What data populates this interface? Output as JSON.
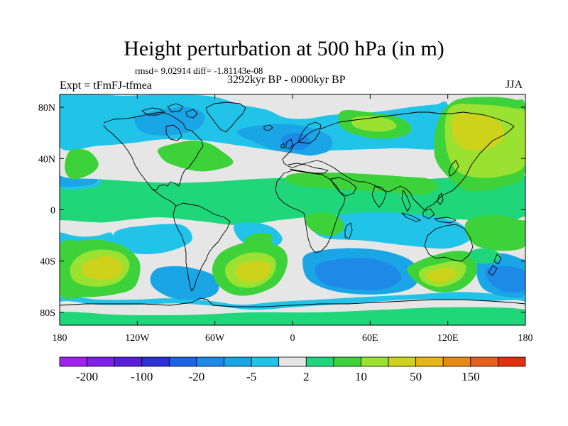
{
  "header": {
    "title": "Height perturbation at 500 hPa (in m)",
    "stats": "rmsd= 9.02914 diff= -1.81143e-08",
    "experiment": "Expt = tFmFJ-tfmea",
    "period": "3292kyr BP - 0000kyr BP",
    "season": "JJA"
  },
  "map": {
    "projection": "cylindrical-equidistant",
    "lon_range": [
      -180,
      180
    ],
    "lat_range": [
      -90,
      90
    ],
    "x_ticks": [
      {
        "lon": -180,
        "label": "180"
      },
      {
        "lon": -120,
        "label": "120W"
      },
      {
        "lon": -60,
        "label": "60W"
      },
      {
        "lon": 0,
        "label": "0"
      },
      {
        "lon": 60,
        "label": "60E"
      },
      {
        "lon": 120,
        "label": "120E"
      },
      {
        "lon": 180,
        "label": "180"
      }
    ],
    "y_ticks": [
      {
        "lat": 80,
        "label": "80N"
      },
      {
        "lat": 40,
        "label": "40N"
      },
      {
        "lat": 0,
        "label": "0"
      },
      {
        "lat": -40,
        "label": "40S"
      },
      {
        "lat": -80,
        "label": "80S"
      }
    ],
    "background_level": "2",
    "coastline_color": "#000000"
  },
  "colorbar": {
    "colors": [
      "#a020f0",
      "#7d21e6",
      "#5a1fd9",
      "#2b33d8",
      "#1e63e3",
      "#1e8ae8",
      "#1aa6e6",
      "#21c4e8",
      "#e6e6e6",
      "#20d67a",
      "#3ed23a",
      "#9ae132",
      "#cfd21a",
      "#e7b514",
      "#e88a12",
      "#e6601a",
      "#e03010"
    ],
    "labels": [
      {
        "boundary": 1,
        "text": "-200"
      },
      {
        "boundary": 3,
        "text": "-100"
      },
      {
        "boundary": 5,
        "text": "-20"
      },
      {
        "boundary": 7,
        "text": "-5"
      },
      {
        "boundary": 9,
        "text": "2"
      },
      {
        "boundary": 11,
        "text": "10"
      },
      {
        "boundary": 13,
        "text": "50"
      },
      {
        "boundary": 15,
        "text": "150"
      }
    ]
  },
  "chart_data": {
    "type": "heatmap",
    "title": "Height perturbation at 500 hPa (in m)",
    "xlabel": "",
    "ylabel": "",
    "xlim": [
      -180,
      180
    ],
    "ylim": [
      -90,
      90
    ],
    "levels": [
      -200,
      -100,
      -20,
      -5,
      2,
      10,
      50,
      150
    ],
    "regions": [
      {
        "level": 9,
        "lon": [
          -180,
          -150,
          -120,
          -90,
          -60,
          -30,
          0,
          30,
          60,
          90,
          120,
          150,
          180,
          180,
          -180
        ],
        "lat": [
          26,
          24,
          22,
          21,
          22,
          24,
          25,
          24,
          22,
          23,
          25,
          26,
          26,
          -8,
          -8
        ]
      },
      {
        "level": 7,
        "lon": [
          -180,
          -170,
          -150,
          -150,
          -170,
          -180
        ],
        "lat": [
          27,
          30,
          31,
          19,
          16,
          18
        ]
      },
      {
        "level": 6,
        "lon": [
          -180,
          -172,
          -155,
          -152,
          -170,
          -180
        ],
        "lat": [
          26,
          29,
          29,
          21,
          18,
          19
        ]
      },
      {
        "level": 7,
        "lon": [
          -180,
          -150,
          -130,
          -100,
          -82,
          -60,
          -40,
          -20,
          -6,
          10,
          30,
          50,
          70,
          90,
          110,
          120,
          122,
          80,
          50,
          20,
          -10,
          -40,
          -70,
          -100,
          -125,
          -150,
          -180
        ],
        "lat": [
          90,
          90,
          89,
          90,
          90,
          88,
          82,
          78,
          72,
          71,
          74,
          75,
          77,
          80,
          82,
          82,
          50,
          48,
          47,
          46,
          46,
          50,
          54,
          55,
          52,
          50,
          49
        ]
      },
      {
        "level": 6,
        "lon": [
          -122,
          -110,
          -95,
          -80,
          -68,
          -72,
          -88,
          -105,
          -118
        ],
        "lat": [
          72,
          76,
          79,
          80,
          74,
          64,
          59,
          58,
          62
        ]
      },
      {
        "level": 6,
        "lon": [
          -40,
          -24,
          -10,
          5,
          20,
          30,
          28,
          10,
          -10,
          -30,
          -42
        ],
        "lat": [
          63,
          66,
          67,
          66,
          62,
          56,
          46,
          42,
          45,
          53,
          59
        ]
      },
      {
        "level": 5,
        "lon": [
          -8,
          2,
          10,
          14,
          8,
          -2,
          -8
        ],
        "lat": [
          57,
          60,
          58,
          52,
          47,
          48,
          52
        ]
      },
      {
        "level": 8,
        "lon": [
          -180,
          -160,
          -140,
          -122,
          -108,
          -95,
          -104,
          -124,
          -150,
          -180
        ],
        "lat": [
          46,
          40,
          37,
          33,
          31,
          29,
          24,
          23,
          24,
          27
        ]
      },
      {
        "level": 8,
        "lon": [
          -50,
          -20,
          15,
          50,
          90,
          110,
          98,
          55,
          20,
          -10,
          -40,
          -50
        ],
        "lat": [
          50,
          47,
          42,
          38,
          32,
          30,
          22,
          27,
          30,
          35,
          41,
          44
        ]
      },
      {
        "level": 10,
        "lon": [
          -103,
          -90,
          -78,
          -65,
          -55,
          -46,
          -52,
          -72,
          -95,
          -103
        ],
        "lat": [
          48,
          52,
          54,
          52,
          46,
          38,
          33,
          30,
          36,
          43
        ]
      },
      {
        "level": 10,
        "lon": [
          -172,
          -158,
          -150,
          -156,
          -170,
          -176
        ],
        "lat": [
          46,
          46,
          36,
          28,
          24,
          32
        ]
      },
      {
        "level": 10,
        "lon": [
          0,
          30,
          55,
          85,
          106,
          112,
          100,
          70,
          38,
          10,
          -5
        ],
        "lat": [
          28,
          29,
          28,
          26,
          24,
          17,
          12,
          14,
          16,
          18,
          22
        ]
      },
      {
        "level": 10,
        "lon": [
          38,
          60,
          82,
          92,
          84,
          60,
          38
        ],
        "lat": [
          77,
          76,
          72,
          64,
          57,
          56,
          64
        ]
      },
      {
        "level": 10,
        "lon": [
          125,
          150,
          172,
          180,
          180,
          162,
          135,
          120,
          110,
          112
        ],
        "lat": [
          85,
          88,
          86,
          80,
          30,
          18,
          15,
          26,
          42,
          68
        ]
      },
      {
        "level": 11,
        "lon": [
          48,
          62,
          76,
          80,
          68,
          52,
          46
        ],
        "lat": [
          72,
          73,
          70,
          64,
          61,
          63,
          67
        ]
      },
      {
        "level": 11,
        "lon": [
          122,
          146,
          172,
          180,
          180,
          160,
          138,
          124,
          118
        ],
        "lat": [
          80,
          82,
          79,
          74,
          36,
          26,
          26,
          34,
          56
        ]
      },
      {
        "level": 12,
        "lon": [
          126,
          146,
          160,
          163,
          150,
          132,
          124
        ],
        "lat": [
          74,
          74,
          68,
          56,
          47,
          48,
          58
        ]
      },
      {
        "level": 8,
        "lon": [
          -180,
          -150,
          -120,
          -100,
          -70,
          -40,
          -10,
          20,
          50,
          80,
          110,
          140,
          170,
          180,
          180,
          150,
          110,
          80,
          50,
          20,
          -10,
          -40,
          -70,
          -100,
          -120,
          -150,
          -180
        ],
        "lat": [
          -9,
          -10,
          -7,
          -6,
          -9,
          -12,
          -8,
          -5,
          -4,
          -3,
          -6,
          -8,
          -8,
          -6,
          -22,
          -25,
          -24,
          -26,
          -24,
          -24,
          -16,
          -14,
          -18,
          -24,
          -22,
          -24,
          -24
        ]
      },
      {
        "level": 7,
        "lon": [
          -180,
          -170,
          -160,
          -150,
          -140,
          -140,
          -160,
          -180
        ],
        "lat": [
          -18,
          -20,
          -21,
          -20,
          -18,
          -28,
          -28,
          -26
        ]
      },
      {
        "level": 7,
        "lon": [
          -135,
          -110,
          -85,
          -78,
          -98,
          -122,
          -138
        ],
        "lat": [
          -16,
          -12,
          -12,
          -24,
          -33,
          -34,
          -26
        ]
      },
      {
        "level": 7,
        "lon": [
          -45,
          -30,
          -15,
          -8,
          -22,
          -40
        ],
        "lat": [
          -12,
          -10,
          -14,
          -24,
          -32,
          -24
        ]
      },
      {
        "level": 7,
        "lon": [
          20,
          55,
          100,
          128,
          138,
          120,
          90,
          55,
          25,
          15
        ],
        "lat": [
          -8,
          -2,
          -4,
          -10,
          -22,
          -30,
          -28,
          -24,
          -22,
          -14
        ]
      },
      {
        "level": 7,
        "lon": [
          -180,
          -150,
          -120,
          -95,
          -65,
          -40,
          -15,
          20,
          55,
          95,
          130,
          160,
          180,
          180,
          -180
        ],
        "lat": [
          -68,
          -70,
          -70,
          -69,
          -71,
          -74,
          -72,
          -70,
          -68,
          -66,
          -64,
          -66,
          -68,
          -90,
          -90
        ]
      },
      {
        "level": 8,
        "lon": [
          -180,
          -150,
          -120,
          -90,
          -60,
          -30,
          0,
          30,
          60,
          90,
          120,
          150,
          180,
          180,
          -180
        ],
        "lat": [
          -72,
          -74,
          -74,
          -73,
          -75,
          -78,
          -76,
          -74,
          -72,
          -70,
          -70,
          -71,
          -72,
          -90,
          -90
        ]
      },
      {
        "level": 9,
        "lon": [
          -180,
          -130,
          -80,
          -30,
          20,
          70,
          120,
          180,
          180,
          -180
        ],
        "lat": [
          -80,
          -82,
          -82,
          -80,
          -80,
          -78,
          -76,
          -78,
          -90,
          -90
        ]
      },
      {
        "level": 6,
        "lon": [
          -105,
          -90,
          -75,
          -60,
          -58,
          -72,
          -92,
          -106,
          -110
        ],
        "lat": [
          -46,
          -44,
          -46,
          -52,
          -64,
          -70,
          -69,
          -62,
          -54
        ]
      },
      {
        "level": 6,
        "lon": [
          12,
          40,
          70,
          92,
          98,
          90,
          65,
          35,
          14,
          8
        ],
        "lat": [
          -34,
          -30,
          -32,
          -40,
          -52,
          -62,
          -66,
          -64,
          -56,
          -44
        ]
      },
      {
        "level": 5,
        "lon": [
          20,
          40,
          60,
          78,
          84,
          70,
          45,
          25,
          18
        ],
        "lat": [
          -42,
          -38,
          -38,
          -44,
          -54,
          -62,
          -62,
          -58,
          -50
        ]
      },
      {
        "level": 6,
        "lon": [
          146,
          162,
          176,
          180,
          180,
          166,
          148,
          142
        ],
        "lat": [
          -36,
          -34,
          -38,
          -42,
          -66,
          -68,
          -62,
          -48
        ]
      },
      {
        "level": 5,
        "lon": [
          150,
          165,
          180,
          180,
          165,
          152
        ],
        "lat": [
          -46,
          -44,
          -48,
          -62,
          -64,
          -56
        ]
      },
      {
        "level": 10,
        "lon": [
          -180,
          -165,
          -145,
          -128,
          -118,
          -122,
          -138,
          -160,
          -180
        ],
        "lat": [
          -28,
          -24,
          -24,
          -30,
          -42,
          -60,
          -66,
          -68,
          -66
        ]
      },
      {
        "level": 11,
        "lon": [
          -165,
          -150,
          -132,
          -126,
          -134,
          -152,
          -168,
          -172
        ],
        "lat": [
          -36,
          -31,
          -34,
          -44,
          -56,
          -60,
          -56,
          -46
        ]
      },
      {
        "level": 12,
        "lon": [
          -158,
          -145,
          -134,
          -132,
          -140,
          -154,
          -162,
          -162
        ],
        "lat": [
          -40,
          -36,
          -40,
          -48,
          -54,
          -54,
          -50,
          -44
        ]
      },
      {
        "level": 10,
        "lon": [
          -56,
          -42,
          -26,
          -8,
          -4,
          -12,
          -30,
          -46,
          -58,
          -62
        ],
        "lat": [
          -34,
          -27,
          -24,
          -30,
          -42,
          -58,
          -66,
          -66,
          -58,
          -46
        ]
      },
      {
        "level": 11,
        "lon": [
          -48,
          -36,
          -22,
          -13,
          -16,
          -28,
          -42,
          -50,
          -52
        ],
        "lat": [
          -40,
          -34,
          -34,
          -40,
          -52,
          -60,
          -60,
          -54,
          -46
        ]
      },
      {
        "level": 12,
        "lon": [
          -42,
          -32,
          -20,
          -17,
          -22,
          -34,
          -42,
          -44
        ],
        "lat": [
          -44,
          -40,
          -41,
          -46,
          -54,
          -56,
          -54,
          -49
        ]
      },
      {
        "level": 10,
        "lon": [
          -36,
          -26,
          -16,
          -18,
          -28,
          -36
        ],
        "lat": [
          -22,
          -18,
          -20,
          -28,
          -30,
          -26
        ]
      },
      {
        "level": 10,
        "lon": [
          90,
          108,
          128,
          140,
          142,
          130,
          112,
          98,
          90
        ],
        "lat": [
          -44,
          -36,
          -32,
          -36,
          -50,
          -62,
          -64,
          -58,
          -50
        ]
      },
      {
        "level": 11,
        "lon": [
          100,
          114,
          126,
          134,
          130,
          116,
          104,
          98
        ],
        "lat": [
          -46,
          -42,
          -40,
          -44,
          -54,
          -60,
          -58,
          -52
        ]
      },
      {
        "level": 12,
        "lon": [
          106,
          116,
          124,
          126,
          118,
          108,
          104
        ],
        "lat": [
          -48,
          -46,
          -46,
          -52,
          -56,
          -56,
          -52
        ]
      },
      {
        "level": 10,
        "lon": [
          12,
          24,
          36,
          40,
          32,
          18,
          10
        ],
        "lat": [
          -4,
          -2,
          -6,
          -14,
          -20,
          -18,
          -10
        ]
      },
      {
        "level": 10,
        "lon": [
          136,
          156,
          176,
          180,
          180,
          162,
          142,
          134
        ],
        "lat": [
          -8,
          -4,
          -8,
          -10,
          -28,
          -32,
          -28,
          -18
        ]
      },
      {
        "level": 9,
        "lon": [
          138,
          150,
          160,
          158,
          146,
          138
        ],
        "lat": [
          -32,
          -30,
          -34,
          -40,
          -42,
          -38
        ]
      }
    ],
    "grid": false,
    "legend": "colorbar-bottom"
  }
}
